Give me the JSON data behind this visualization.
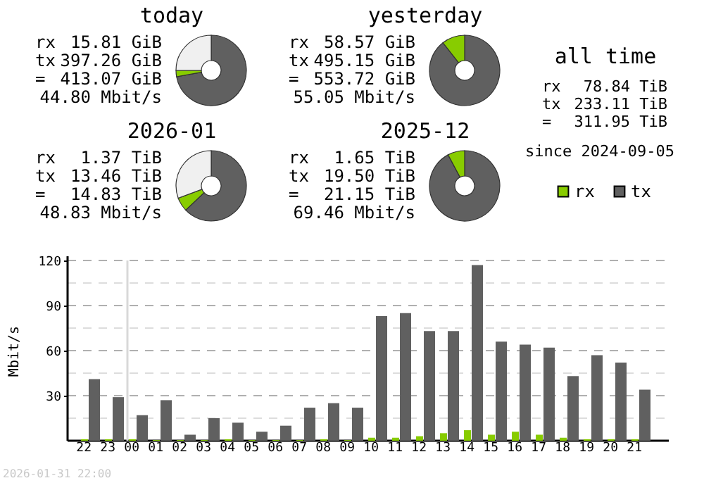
{
  "chart_data": [
    {
      "type": "donut",
      "title": "today",
      "categories": [
        null,
        null,
        null
      ],
      "values": [
        72.1,
        2.9,
        25.0
      ],
      "colors": [
        "#606060",
        "#88cc00",
        "#f0f0f0"
      ],
      "annotations": [
        "rx",
        "15.81 GiB",
        "tx",
        "397.26 GiB",
        "=",
        "413.07 GiB",
        "44.80 Mbit/s"
      ]
    },
    {
      "type": "donut",
      "title": "yesterday",
      "categories": [
        null,
        null
      ],
      "values": [
        89.4,
        10.6
      ],
      "colors": [
        "#606060",
        "#88cc00"
      ],
      "annotations": [
        "rx",
        "58.57 GiB",
        "tx",
        "495.15 GiB",
        "=",
        "553.72 GiB",
        "55.05 Mbit/s"
      ]
    },
    {
      "type": "other",
      "title": "all time",
      "annotations": [
        "rx",
        "78.84 TiB",
        "tx",
        "233.11 TiB",
        "=",
        "311.95 TiB",
        "since 2024-09-05"
      ]
    },
    {
      "type": "donut",
      "title": "2026-01",
      "categories": [
        null,
        null,
        null
      ],
      "values": [
        62.9,
        6.4,
        30.7
      ],
      "colors": [
        "#606060",
        "#88cc00",
        "#f0f0f0"
      ],
      "annotations": [
        "rx",
        "1.37 TiB",
        "tx",
        "13.46 TiB",
        "=",
        "14.83 TiB",
        "48.83 Mbit/s"
      ]
    },
    {
      "type": "donut",
      "title": "2025-12",
      "categories": [
        null,
        null
      ],
      "values": [
        92.2,
        7.8
      ],
      "colors": [
        "#606060",
        "#88cc00"
      ],
      "annotations": [
        "rx",
        "1.65 TiB",
        "tx",
        "19.50 TiB",
        "=",
        "21.15 TiB",
        "69.46 Mbit/s"
      ]
    },
    {
      "type": "bar",
      "ylabel": "Mbit/s",
      "legend": "top right",
      "grid": "y",
      "categories": [
        "22",
        "23",
        "00",
        "01",
        "02",
        "03",
        "04",
        "05",
        "06",
        "07",
        "08",
        "09",
        "10",
        "11",
        "12",
        "13",
        "14",
        "15",
        "16",
        "17",
        "18",
        "19",
        "20",
        "21"
      ],
      "series": [
        {
          "name": "rx",
          "color": "#88cc00",
          "values": [
            1,
            1,
            1,
            0.5,
            0.5,
            0.5,
            1,
            0.5,
            0.5,
            0.5,
            1,
            0.5,
            2,
            2,
            3,
            5,
            7,
            4,
            6,
            4,
            2,
            1,
            1,
            1
          ]
        },
        {
          "name": "tx",
          "color": "#606060",
          "values": [
            41,
            29,
            17,
            27,
            4,
            15,
            12,
            6,
            10,
            22,
            25,
            22,
            83,
            85,
            73,
            73,
            117,
            66,
            64,
            62,
            43,
            57,
            52,
            34
          ]
        }
      ],
      "ylim": [
        0,
        120
      ],
      "yticks": [
        {
          "value": 0,
          "label": null
        },
        {
          "value": 15,
          "label": null
        },
        30,
        {
          "value": 45,
          "label": null
        },
        60,
        {
          "value": 75,
          "label": null
        },
        90,
        {
          "value": 105,
          "label": null
        },
        120
      ],
      "ref_lines": [
        {
          "axis": "x",
          "value": "00",
          "color": "#d8d8d8"
        }
      ],
      "annotations": [
        "2026-01-31 22:00"
      ]
    }
  ]
}
